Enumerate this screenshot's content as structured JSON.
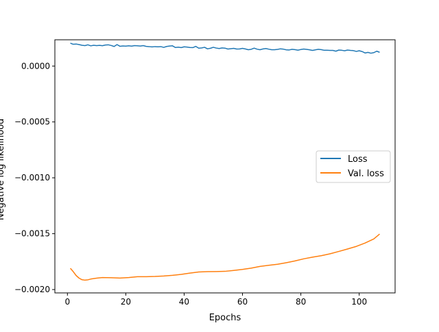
{
  "chart_data": {
    "type": "line",
    "title": "",
    "xlabel": "Epochs",
    "ylabel": "Negative log likelihood",
    "xlim": [
      -4.3,
      112.3
    ],
    "ylim": [
      -0.00203,
      0.000235
    ],
    "xticks": [
      0,
      20,
      40,
      60,
      80,
      100
    ],
    "xtick_labels": [
      "0",
      "20",
      "40",
      "60",
      "80",
      "100"
    ],
    "yticks": [
      0.0,
      -0.0005,
      -0.001,
      -0.0015,
      -0.002
    ],
    "ytick_labels": [
      "0.0000",
      "−0.0005",
      "−0.0010",
      "−0.0015",
      "−0.0020"
    ],
    "grid": false,
    "legend": {
      "placement": "center-right",
      "entries": [
        "Loss",
        "Val. loss"
      ]
    },
    "series": [
      {
        "name": "Loss",
        "color": "#1f77b4",
        "x": [
          1,
          2,
          3,
          4,
          5,
          6,
          7,
          8,
          9,
          10,
          11,
          12,
          13,
          14,
          15,
          16,
          17,
          18,
          19,
          20,
          21,
          22,
          23,
          24,
          25,
          26,
          27,
          28,
          29,
          30,
          31,
          32,
          33,
          34,
          35,
          36,
          37,
          38,
          39,
          40,
          41,
          42,
          43,
          44,
          45,
          46,
          47,
          48,
          49,
          50,
          51,
          52,
          53,
          54,
          55,
          56,
          57,
          58,
          59,
          60,
          61,
          62,
          63,
          64,
          65,
          66,
          67,
          68,
          69,
          70,
          71,
          72,
          73,
          74,
          75,
          76,
          77,
          78,
          79,
          80,
          81,
          82,
          83,
          84,
          85,
          86,
          87,
          88,
          89,
          90,
          91,
          92,
          93,
          94,
          95,
          96,
          97,
          98,
          99,
          100,
          101,
          102,
          103,
          104,
          105,
          106,
          107
        ],
        "y": [
          0.000205,
          0.000195,
          0.000197,
          0.000192,
          0.000186,
          0.000183,
          0.00019,
          0.000181,
          0.000186,
          0.000183,
          0.000185,
          0.000182,
          0.000188,
          0.00019,
          0.000184,
          0.000175,
          0.000192,
          0.000177,
          0.00018,
          0.000178,
          0.000181,
          0.000178,
          0.000183,
          0.000181,
          0.000179,
          0.000183,
          0.000176,
          0.000174,
          0.000171,
          0.000174,
          0.000172,
          0.000174,
          0.000167,
          0.000175,
          0.000179,
          0.000181,
          0.000166,
          0.000169,
          0.000165,
          0.000172,
          0.00017,
          0.000166,
          0.000165,
          0.000176,
          0.00016,
          0.000162,
          0.000168,
          0.000154,
          0.000159,
          0.000168,
          0.000161,
          0.000157,
          0.000162,
          0.00016,
          0.000152,
          0.000155,
          0.000158,
          0.000152,
          0.000153,
          0.000158,
          0.000153,
          0.000146,
          0.00015,
          0.00016,
          0.000151,
          0.000146,
          0.000153,
          0.000157,
          0.000151,
          0.000146,
          0.000146,
          0.000149,
          0.000154,
          0.000151,
          0.000145,
          0.000144,
          0.00015,
          0.000147,
          0.000142,
          0.000148,
          0.000152,
          0.000149,
          0.000145,
          0.00014,
          0.000145,
          0.00015,
          0.000147,
          0.000141,
          0.000141,
          0.00014,
          0.00014,
          0.000133,
          0.000143,
          0.000141,
          0.000137,
          0.000143,
          0.00014,
          0.000138,
          0.000131,
          0.000137,
          0.00013,
          0.000117,
          0.000122,
          0.000115,
          0.00012,
          0.000133,
          0.000123
        ]
      },
      {
        "name": "Val. loss",
        "color": "#ff7f0e",
        "x": [
          1,
          2,
          3,
          4,
          5,
          6,
          7,
          8,
          10,
          12,
          15,
          18,
          21,
          24,
          27,
          30,
          33,
          36,
          39,
          42,
          45,
          48,
          51,
          54,
          57,
          60,
          63,
          66,
          69,
          72,
          75,
          78,
          81,
          84,
          87,
          90,
          93,
          96,
          99,
          102,
          105,
          107
        ],
        "y": [
          -0.00181,
          -0.00184,
          -0.001875,
          -0.001898,
          -0.001912,
          -0.001916,
          -0.001913,
          -0.001906,
          -0.001898,
          -0.001893,
          -0.001894,
          -0.001897,
          -0.001893,
          -0.001885,
          -0.001885,
          -0.001883,
          -0.001879,
          -0.001873,
          -0.001864,
          -0.001853,
          -0.001843,
          -0.00184,
          -0.001839,
          -0.001837,
          -0.001829,
          -0.00182,
          -0.001808,
          -0.001793,
          -0.001783,
          -0.001774,
          -0.00176,
          -0.001744,
          -0.001725,
          -0.00171,
          -0.001697,
          -0.00168,
          -0.001659,
          -0.001637,
          -0.001614,
          -0.001584,
          -0.001547,
          -0.001503
        ]
      }
    ]
  }
}
